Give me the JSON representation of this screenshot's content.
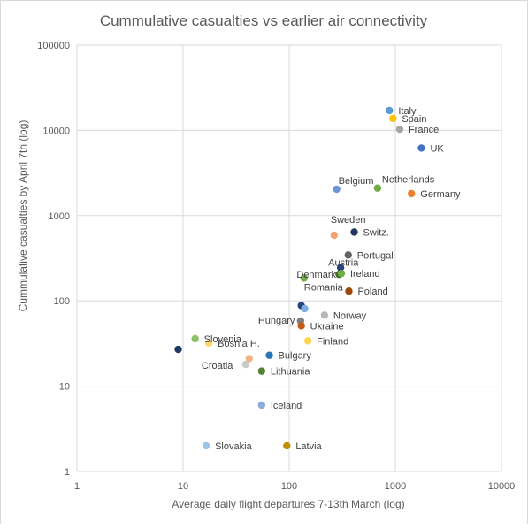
{
  "chart_data": {
    "type": "scatter",
    "title": "Cummulative casualties vs earlier air connectivity",
    "xlabel": "Average daily flight departures 7-13th March (log)",
    "ylabel": "Cummulative casualties by April 7th (log)",
    "x_scale": "log",
    "y_scale": "log",
    "xlim": [
      1,
      10000
    ],
    "ylim": [
      1,
      100000
    ],
    "grid": true,
    "x_ticks": [
      "1",
      "10",
      "100",
      "1000",
      "10000"
    ],
    "y_ticks": [
      "1",
      "10",
      "100",
      "1000",
      "10000",
      "100000"
    ],
    "points": [
      {
        "label": "Italy",
        "x": 880,
        "y": 17100,
        "color": "#5b9bd5"
      },
      {
        "label": "Spain",
        "x": 950,
        "y": 13800,
        "color": "#ffc000"
      },
      {
        "label": "France",
        "x": 1100,
        "y": 10300,
        "color": "#a5a5a5"
      },
      {
        "label": "UK",
        "x": 1760,
        "y": 6200,
        "color": "#4472c4"
      },
      {
        "label": "Belgium",
        "x": 280,
        "y": 2040,
        "color": "#6e93d6"
      },
      {
        "label": "Netherlands",
        "x": 680,
        "y": 2100,
        "color": "#70ad47"
      },
      {
        "label": "Germany",
        "x": 1420,
        "y": 1810,
        "color": "#ed7d31"
      },
      {
        "label": "Sweden",
        "x": 265,
        "y": 590,
        "color": "#f4a06c"
      },
      {
        "label": "Switz.",
        "x": 410,
        "y": 640,
        "color": "#203864"
      },
      {
        "label": "Portugal",
        "x": 360,
        "y": 345,
        "color": "#636363"
      },
      {
        "label": "Austria",
        "x": 305,
        "y": 245,
        "color": "#264478"
      },
      {
        "label": "Denmark",
        "x": 295,
        "y": 205,
        "color": "#43682b"
      },
      {
        "label": "Ireland",
        "x": 310,
        "y": 210,
        "color": "#70ad47"
      },
      {
        "label": "Romania",
        "x": 138,
        "y": 185,
        "color": "#70ad47"
      },
      {
        "label": "Poland",
        "x": 365,
        "y": 130,
        "color": "#9e480e"
      },
      {
        "label": "",
        "x": 130,
        "y": 88,
        "color": "#264478"
      },
      {
        "label": "",
        "x": 140,
        "y": 81,
        "color": "#7cafdd"
      },
      {
        "label": "Hungary",
        "x": 128,
        "y": 58,
        "color": "#7f7f7f"
      },
      {
        "label": "Norway",
        "x": 215,
        "y": 68,
        "color": "#b7b7b7"
      },
      {
        "label": "Ukraine",
        "x": 130,
        "y": 51,
        "color": "#c55a11"
      },
      {
        "label": "Finland",
        "x": 150,
        "y": 34,
        "color": "#ffd34d"
      },
      {
        "label": "Slovenia",
        "x": 13,
        "y": 36,
        "color": "#8fc16d"
      },
      {
        "label": "Bosnia H.",
        "x": 17.5,
        "y": 32,
        "color": "#ffd966"
      },
      {
        "label": "",
        "x": 9,
        "y": 27,
        "color": "#1f3864"
      },
      {
        "label": "Bulgary",
        "x": 65,
        "y": 23,
        "color": "#2e75b6"
      },
      {
        "label": "",
        "x": 42,
        "y": 21,
        "color": "#f4b183"
      },
      {
        "label": "Croatia",
        "x": 39,
        "y": 18,
        "color": "#c9c9c9"
      },
      {
        "label": "Lithuania",
        "x": 55,
        "y": 15,
        "color": "#548235"
      },
      {
        "label": "Iceland",
        "x": 55,
        "y": 6,
        "color": "#8faadc"
      },
      {
        "label": "Slovakia",
        "x": 16.5,
        "y": 2,
        "color": "#9dc3e6"
      },
      {
        "label": "Latvia",
        "x": 95,
        "y": 2,
        "color": "#bf9000"
      }
    ]
  }
}
